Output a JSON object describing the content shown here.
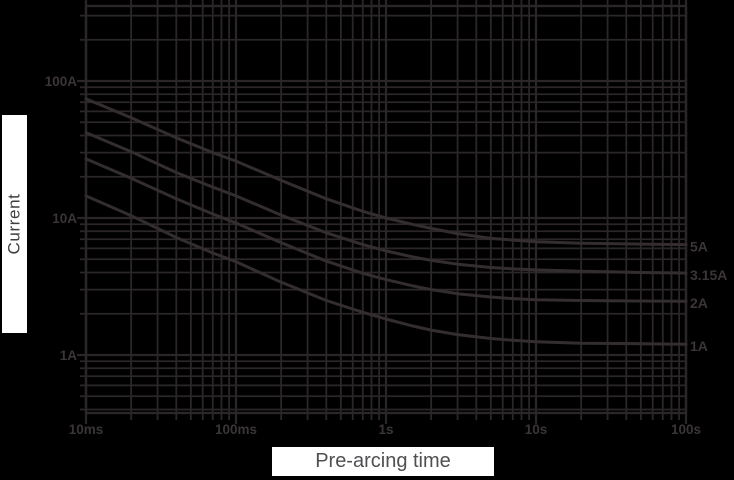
{
  "colors": {
    "background": "#000000",
    "ink_grid": "#2b2729",
    "ink_curve": "#332d2f",
    "ink_label": "#3b3537",
    "box_bg": "#ffffff",
    "xlabel_text": "#4f5052",
    "ylabel_text": "#3d3f41"
  },
  "chart_data": {
    "type": "line",
    "title": "",
    "xlabel": "Pre-arcing time",
    "ylabel": "Current",
    "grid": "log-log, major and minor gridlines on",
    "legend_position": "right-edge curve labels",
    "x_axis": {
      "scale": "log",
      "unit": "seconds",
      "range": [
        0.01,
        100
      ],
      "ticks": [
        {
          "value": 0.01,
          "label": "10ms"
        },
        {
          "value": 0.1,
          "label": "100ms"
        },
        {
          "value": 1,
          "label": "1s"
        },
        {
          "value": 10,
          "label": "10s"
        },
        {
          "value": 100,
          "label": "100s"
        }
      ]
    },
    "y_axis": {
      "scale": "log",
      "unit": "amperes",
      "range": [
        0.38,
        350
      ],
      "ticks": [
        {
          "value": 100,
          "label": "100A"
        },
        {
          "value": 10,
          "label": "10A"
        },
        {
          "value": 1,
          "label": "1A"
        }
      ]
    },
    "series": [
      {
        "name": "5A",
        "points": [
          [
            0.01,
            74
          ],
          [
            0.02,
            54
          ],
          [
            0.04,
            38.5
          ],
          [
            0.07,
            30
          ],
          [
            0.1,
            26
          ],
          [
            0.2,
            18.8
          ],
          [
            0.4,
            13.8
          ],
          [
            0.7,
            11.2
          ],
          [
            1,
            10
          ],
          [
            1.5,
            9.0
          ],
          [
            2,
            8.4
          ],
          [
            3,
            7.7
          ],
          [
            5,
            7.1
          ],
          [
            7,
            6.9
          ],
          [
            10,
            6.7
          ],
          [
            20,
            6.55
          ],
          [
            50,
            6.45
          ],
          [
            100,
            6.4
          ]
        ]
      },
      {
        "name": "3.15A",
        "points": [
          [
            0.01,
            42
          ],
          [
            0.02,
            30.5
          ],
          [
            0.04,
            21.5
          ],
          [
            0.07,
            16.8
          ],
          [
            0.1,
            14.5
          ],
          [
            0.2,
            10.5
          ],
          [
            0.4,
            7.8
          ],
          [
            0.7,
            6.4
          ],
          [
            1,
            5.75
          ],
          [
            1.5,
            5.2
          ],
          [
            2,
            4.9
          ],
          [
            3,
            4.6
          ],
          [
            5,
            4.35
          ],
          [
            7,
            4.25
          ],
          [
            10,
            4.18
          ],
          [
            20,
            4.08
          ],
          [
            50,
            4.0
          ],
          [
            100,
            3.97
          ]
        ]
      },
      {
        "name": "2A",
        "points": [
          [
            0.01,
            27
          ],
          [
            0.02,
            19.5
          ],
          [
            0.04,
            13.8
          ],
          [
            0.07,
            10.7
          ],
          [
            0.1,
            9.2
          ],
          [
            0.2,
            6.6
          ],
          [
            0.4,
            4.85
          ],
          [
            0.7,
            3.95
          ],
          [
            1,
            3.55
          ],
          [
            1.5,
            3.2
          ],
          [
            2,
            3.0
          ],
          [
            3,
            2.8
          ],
          [
            5,
            2.65
          ],
          [
            7,
            2.58
          ],
          [
            10,
            2.53
          ],
          [
            20,
            2.5
          ],
          [
            50,
            2.48
          ],
          [
            100,
            2.47
          ]
        ]
      },
      {
        "name": "1A",
        "points": [
          [
            0.01,
            14.5
          ],
          [
            0.02,
            10.4
          ],
          [
            0.04,
            7.2
          ],
          [
            0.07,
            5.55
          ],
          [
            0.1,
            4.8
          ],
          [
            0.2,
            3.4
          ],
          [
            0.4,
            2.5
          ],
          [
            0.7,
            2.05
          ],
          [
            1,
            1.83
          ],
          [
            1.5,
            1.63
          ],
          [
            2,
            1.52
          ],
          [
            3,
            1.41
          ],
          [
            5,
            1.32
          ],
          [
            7,
            1.28
          ],
          [
            10,
            1.25
          ],
          [
            20,
            1.22
          ],
          [
            50,
            1.21
          ],
          [
            100,
            1.2
          ]
        ]
      }
    ]
  }
}
